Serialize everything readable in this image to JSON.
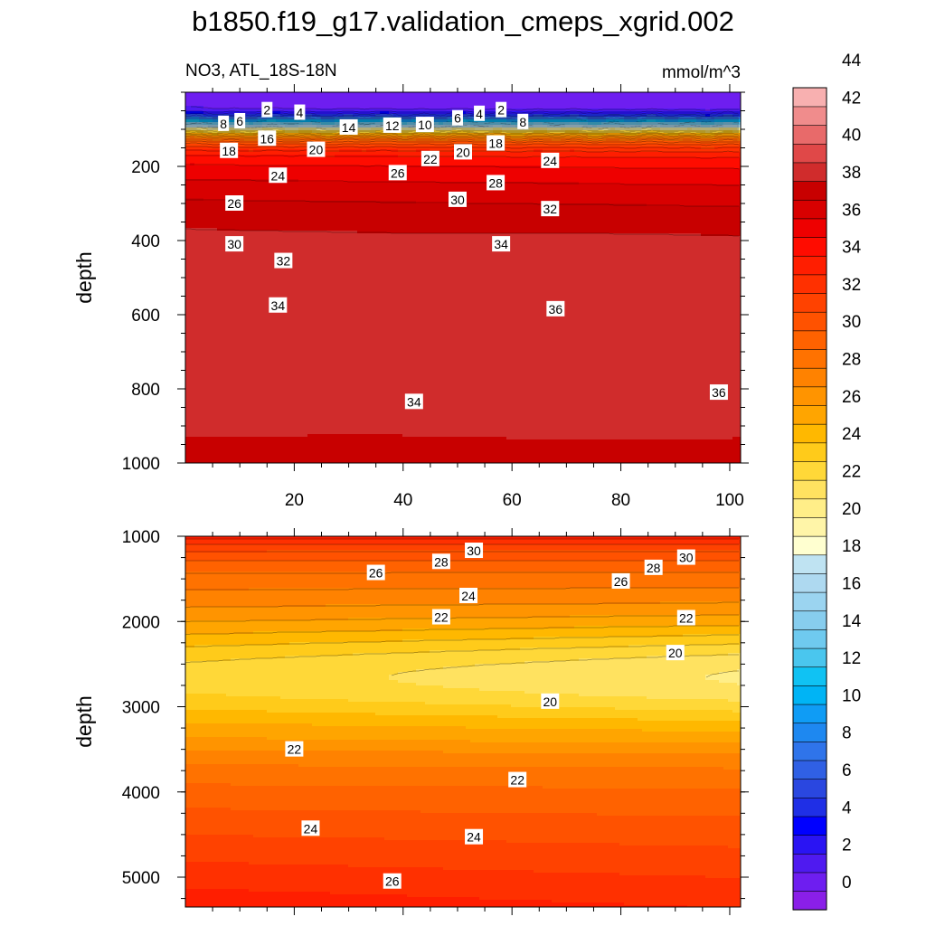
{
  "title": "b1850.f19_g17.validation_cmeps_xgrid.002",
  "chart_data": [
    {
      "type": "heatmap",
      "subtitle_left": "NO3, ATL_18S-18N",
      "subtitle_right": "mmol/m^3",
      "ylabel": "depth",
      "xlabel": "",
      "xlim": [
        0,
        102
      ],
      "ylim": [
        1000,
        0
      ],
      "x_ticks": [
        20,
        40,
        60,
        80,
        100
      ],
      "y_ticks": [
        200,
        400,
        600,
        800,
        1000
      ],
      "x": [
        0,
        10,
        20,
        30,
        40,
        50,
        60,
        70,
        80,
        90,
        100
      ],
      "y": [
        25,
        50,
        75,
        100,
        125,
        150,
        175,
        200,
        225,
        250,
        300,
        350,
        400,
        450,
        500,
        550,
        600,
        650,
        700,
        750,
        800,
        850,
        900,
        950,
        1000
      ],
      "contour_labels": [
        {
          "x": 7,
          "y": 85,
          "v": "8"
        },
        {
          "x": 10,
          "y": 78,
          "v": "6"
        },
        {
          "x": 15,
          "y": 48,
          "v": "2"
        },
        {
          "x": 21,
          "y": 55,
          "v": "4"
        },
        {
          "x": 30,
          "y": 95,
          "v": "14"
        },
        {
          "x": 38,
          "y": 90,
          "v": "12"
        },
        {
          "x": 44,
          "y": 88,
          "v": "10"
        },
        {
          "x": 50,
          "y": 70,
          "v": "6"
        },
        {
          "x": 54,
          "y": 58,
          "v": "4"
        },
        {
          "x": 58,
          "y": 48,
          "v": "2"
        },
        {
          "x": 62,
          "y": 80,
          "v": "8"
        },
        {
          "x": 15,
          "y": 125,
          "v": "16"
        },
        {
          "x": 8,
          "y": 158,
          "v": "18"
        },
        {
          "x": 24,
          "y": 155,
          "v": "20"
        },
        {
          "x": 17,
          "y": 225,
          "v": "24"
        },
        {
          "x": 45,
          "y": 180,
          "v": "22"
        },
        {
          "x": 51,
          "y": 162,
          "v": "20"
        },
        {
          "x": 57,
          "y": 138,
          "v": "18"
        },
        {
          "x": 67,
          "y": 185,
          "v": "24"
        },
        {
          "x": 39,
          "y": 218,
          "v": "26"
        },
        {
          "x": 57,
          "y": 245,
          "v": "28"
        },
        {
          "x": 50,
          "y": 290,
          "v": "30"
        },
        {
          "x": 67,
          "y": 315,
          "v": "32"
        },
        {
          "x": 9,
          "y": 300,
          "v": "26"
        },
        {
          "x": 9,
          "y": 410,
          "v": "30"
        },
        {
          "x": 18,
          "y": 455,
          "v": "32"
        },
        {
          "x": 58,
          "y": 410,
          "v": "34"
        },
        {
          "x": 17,
          "y": 575,
          "v": "34"
        },
        {
          "x": 68,
          "y": 585,
          "v": "36"
        },
        {
          "x": 98,
          "y": 810,
          "v": "36"
        },
        {
          "x": 42,
          "y": 835,
          "v": "34"
        }
      ]
    },
    {
      "type": "heatmap",
      "ylabel": "depth",
      "xlabel": "",
      "xlim": [
        0,
        102
      ],
      "ylim": [
        5350,
        1000
      ],
      "y_ticks": [
        1000,
        2000,
        3000,
        4000,
        5000
      ],
      "x": [
        0,
        10,
        20,
        30,
        40,
        50,
        60,
        70,
        80,
        90,
        100
      ],
      "y": [
        1000,
        1250,
        1500,
        1750,
        2000,
        2250,
        2500,
        2750,
        3000,
        3250,
        3500,
        3750,
        4000,
        4250,
        4500,
        4750,
        5000,
        5350
      ],
      "contour_labels": [
        {
          "x": 53,
          "y": 1170,
          "v": "30"
        },
        {
          "x": 47,
          "y": 1300,
          "v": "28"
        },
        {
          "x": 35,
          "y": 1430,
          "v": "26"
        },
        {
          "x": 86,
          "y": 1370,
          "v": "28"
        },
        {
          "x": 92,
          "y": 1250,
          "v": "30"
        },
        {
          "x": 80,
          "y": 1530,
          "v": "26"
        },
        {
          "x": 52,
          "y": 1700,
          "v": "24"
        },
        {
          "x": 47,
          "y": 1950,
          "v": "22"
        },
        {
          "x": 92,
          "y": 1960,
          "v": "22"
        },
        {
          "x": 90,
          "y": 2370,
          "v": "20"
        },
        {
          "x": 67,
          "y": 2940,
          "v": "20"
        },
        {
          "x": 20,
          "y": 3500,
          "v": "22"
        },
        {
          "x": 61,
          "y": 3860,
          "v": "22"
        },
        {
          "x": 23,
          "y": 4430,
          "v": "24"
        },
        {
          "x": 53,
          "y": 4530,
          "v": "24"
        },
        {
          "x": 38,
          "y": 5050,
          "v": "26"
        }
      ]
    }
  ],
  "colorbar": {
    "labels": [
      "44",
      "42",
      "40",
      "38",
      "36",
      "34",
      "32",
      "30",
      "28",
      "26",
      "24",
      "22",
      "20",
      "18",
      "16",
      "14",
      "12",
      "10",
      "8",
      "6",
      "4",
      "2",
      "0"
    ],
    "colors": [
      "#8a1fe8",
      "#6e1ef0",
      "#4f1af0",
      "#2a14f3",
      "#0000ff",
      "#1f2fe6",
      "#2a47e0",
      "#3060e4",
      "#2f74ea",
      "#1e88f0",
      "#0f9cf5",
      "#00b4f5",
      "#10c2f3",
      "#4ac6ee",
      "#6fcaef",
      "#87cdee",
      "#9bd4f0",
      "#aed9f0",
      "#bfe3f2",
      "#ffffd0",
      "#fff5a8",
      "#ffee88",
      "#ffe260",
      "#ffd838",
      "#ffcb1a",
      "#ffb800",
      "#ffa500",
      "#ff9400",
      "#ff8200",
      "#ff7200",
      "#ff6200",
      "#ff5200",
      "#ff4200",
      "#ff3000",
      "#ff1e00",
      "#ff0c00",
      "#ee0000",
      "#d80000",
      "#c80000",
      "#d02c2c",
      "#e04848",
      "#e86a6a",
      "#f08c8c",
      "#f8b0b0"
    ]
  }
}
